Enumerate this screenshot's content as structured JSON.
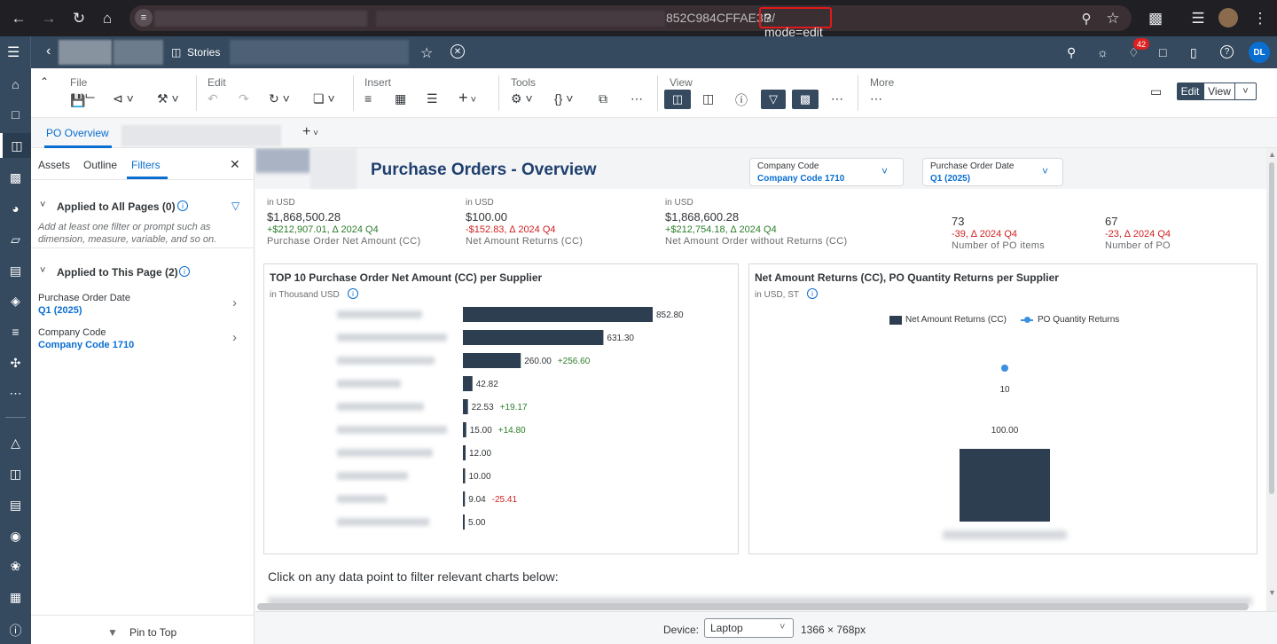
{
  "browser": {
    "url_visible": "852C984CFFAE3B/",
    "url_mode": "?mode=edit"
  },
  "shell": {
    "stories_label": "Stories",
    "notification_count": "42",
    "avatar_initials": "DL"
  },
  "toolbar": {
    "file": "File",
    "edit": "Edit",
    "insert": "Insert",
    "tools": "Tools",
    "view": "View",
    "more": "More",
    "edit_mode": "Edit",
    "view_mode": "View"
  },
  "tabs": {
    "active": "PO Overview"
  },
  "panel": {
    "tabs": [
      "Assets",
      "Outline",
      "Filters"
    ],
    "all_pages_title": "Applied to All Pages (0)",
    "all_pages_hint": "Add at least one filter or prompt such as dimension, measure, variable, and so on.",
    "this_page_title": "Applied to This Page (2)",
    "filters": [
      {
        "name": "Purchase Order Date",
        "value": "Q1 (2025)"
      },
      {
        "name": "Company Code",
        "value": "Company Code 1710"
      }
    ],
    "pin_label": "Pin to Top"
  },
  "page": {
    "title": "Purchase Orders - Overview",
    "dropdowns": [
      {
        "label": "Company Code",
        "value": "Company Code 1710"
      },
      {
        "label": "Purchase Order Date",
        "value": "Q1 (2025)"
      }
    ],
    "kpis": [
      {
        "unit": "in USD",
        "value": "$1,868,500.28",
        "delta": "+$212,907.01, ∆ 2024 Q4",
        "delta_type": "pos",
        "label": "Purchase Order Net Amount (CC)"
      },
      {
        "unit": "in USD",
        "value": "$100.00",
        "delta": "-$152.83, ∆ 2024 Q4",
        "delta_type": "neg",
        "label": "Net Amount Returns (CC)"
      },
      {
        "unit": "in USD",
        "value": "$1,868,600.28",
        "delta": "+$212,754.18, ∆ 2024 Q4",
        "delta_type": "pos",
        "label": "Net Amount Order without Returns (CC)"
      },
      {
        "unit": "",
        "value": "73",
        "delta": "-39, ∆ 2024 Q4",
        "delta_type": "neg",
        "label": "Number of PO items"
      },
      {
        "unit": "",
        "value": "67",
        "delta": "-23, ∆ 2024 Q4",
        "delta_type": "neg",
        "label": "Number of PO"
      }
    ],
    "footer_text": "Click on any data point to filter relevant charts below:"
  },
  "status": {
    "device_label": "Device:",
    "device_value": "Laptop",
    "resolution": "1366 × 768px"
  },
  "colors": {
    "shell": "#354a5f",
    "bar": "#2c3e50",
    "accent": "#0a6ed1",
    "pos": "#2b7d2b",
    "neg": "#d22020"
  },
  "chart_data": [
    {
      "type": "bar",
      "title": "TOP 10 Purchase Order Net Amount (CC) per Supplier",
      "subtitle": "in Thousand USD",
      "orientation": "horizontal",
      "values": [
        852.8,
        631.3,
        260.0,
        42.82,
        22.53,
        15.0,
        12.0,
        10.0,
        9.04,
        5.0
      ],
      "value_labels": [
        "852.80",
        "631.30",
        "260.00",
        "42.82",
        "22.53",
        "15.00",
        "12.00",
        "10.00",
        "9.04",
        "5.00"
      ],
      "variances": [
        "",
        "",
        "+256.60",
        "",
        "+19.17",
        "+14.80",
        "",
        "",
        "-25.41",
        ""
      ],
      "xlim": [
        0,
        852.8
      ]
    },
    {
      "type": "bar",
      "title": "Net Amount Returns (CC), PO Quantity Returns per Supplier",
      "subtitle": "in USD, ST",
      "legend": [
        "Net Amount Returns (CC)",
        "PO Quantity Returns"
      ],
      "series": [
        {
          "name": "Net Amount Returns (CC)",
          "values": [
            100.0
          ],
          "label": "100.00"
        },
        {
          "name": "PO Quantity Returns",
          "values": [
            10
          ],
          "label": "10"
        }
      ]
    }
  ]
}
